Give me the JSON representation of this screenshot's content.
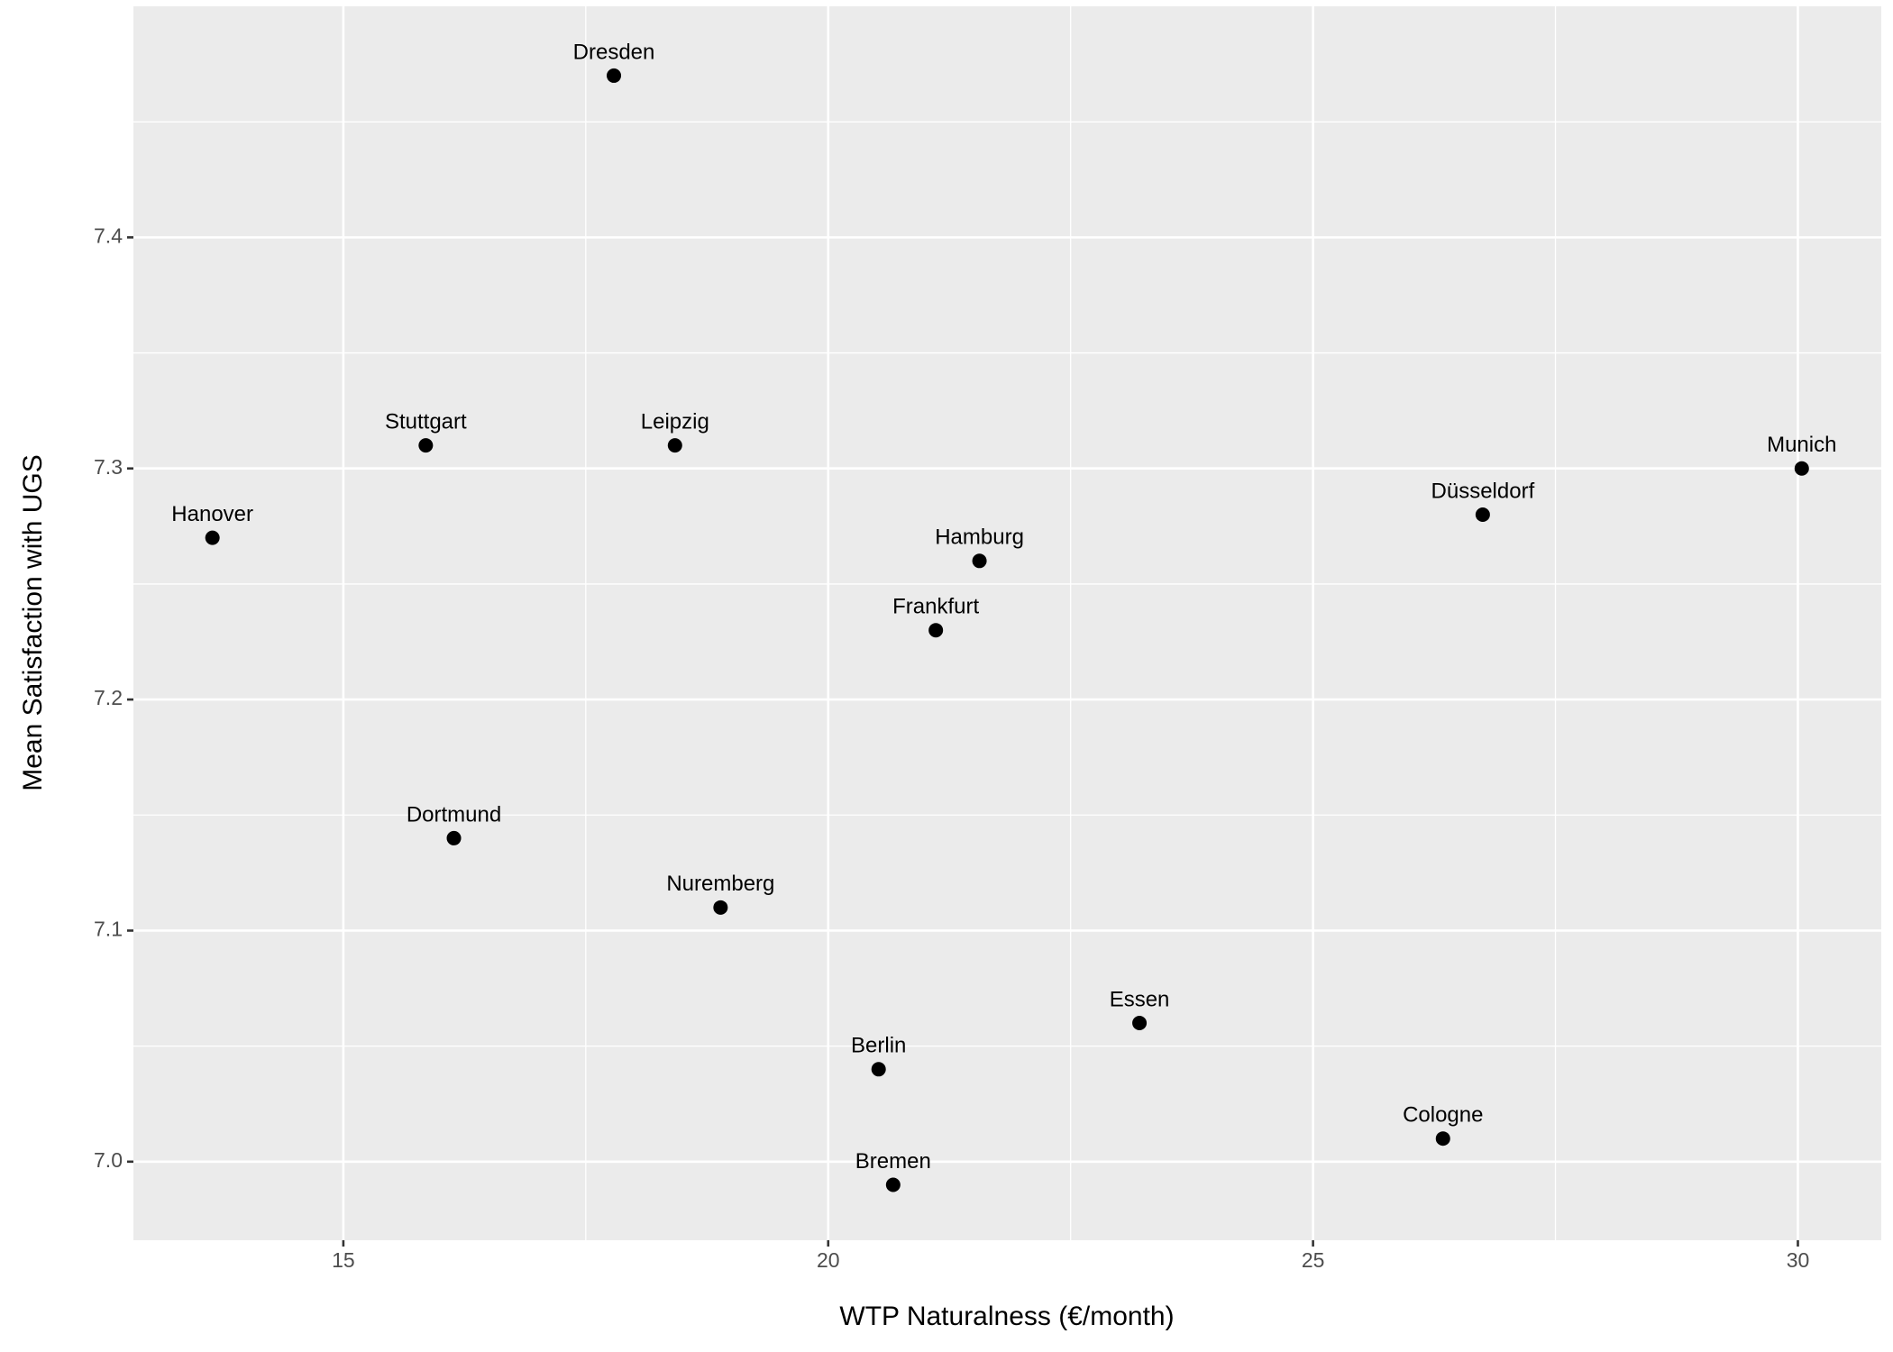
{
  "chart_data": {
    "type": "scatter",
    "xlabel": "WTP Naturalness (€/month)",
    "ylabel": "Mean Satisfaction with UGS",
    "labels": [
      "Dresden",
      "Stuttgart",
      "Leipzig",
      "Hanover",
      "Munich",
      "Düsseldorf",
      "Hamburg",
      "Frankfurt",
      "Dortmund",
      "Nuremberg",
      "Essen",
      "Berlin",
      "Cologne",
      "Bremen"
    ],
    "x": [
      17.79,
      15.85,
      18.42,
      13.65,
      30.04,
      26.75,
      21.56,
      21.11,
      16.14,
      18.89,
      23.21,
      20.52,
      26.34,
      20.67
    ],
    "y": [
      7.47,
      7.31,
      7.31,
      7.27,
      7.3,
      7.28,
      7.26,
      7.23,
      7.14,
      7.11,
      7.06,
      7.04,
      7.01,
      6.99
    ],
    "color": "#000000",
    "xlim": [
      12.835,
      30.86
    ],
    "ylim": [
      6.966,
      7.5
    ],
    "xticks": [
      15,
      20,
      25,
      30
    ],
    "yticks": [
      {
        "value": 7.0,
        "label": "7.0"
      },
      {
        "value": 7.1,
        "label": "7.1"
      },
      {
        "value": 7.2,
        "label": "7.2"
      },
      {
        "value": 7.3,
        "label": "7.3"
      },
      {
        "value": 7.4,
        "label": "7.4"
      }
    ],
    "grid": true,
    "minor_grid": true
  }
}
